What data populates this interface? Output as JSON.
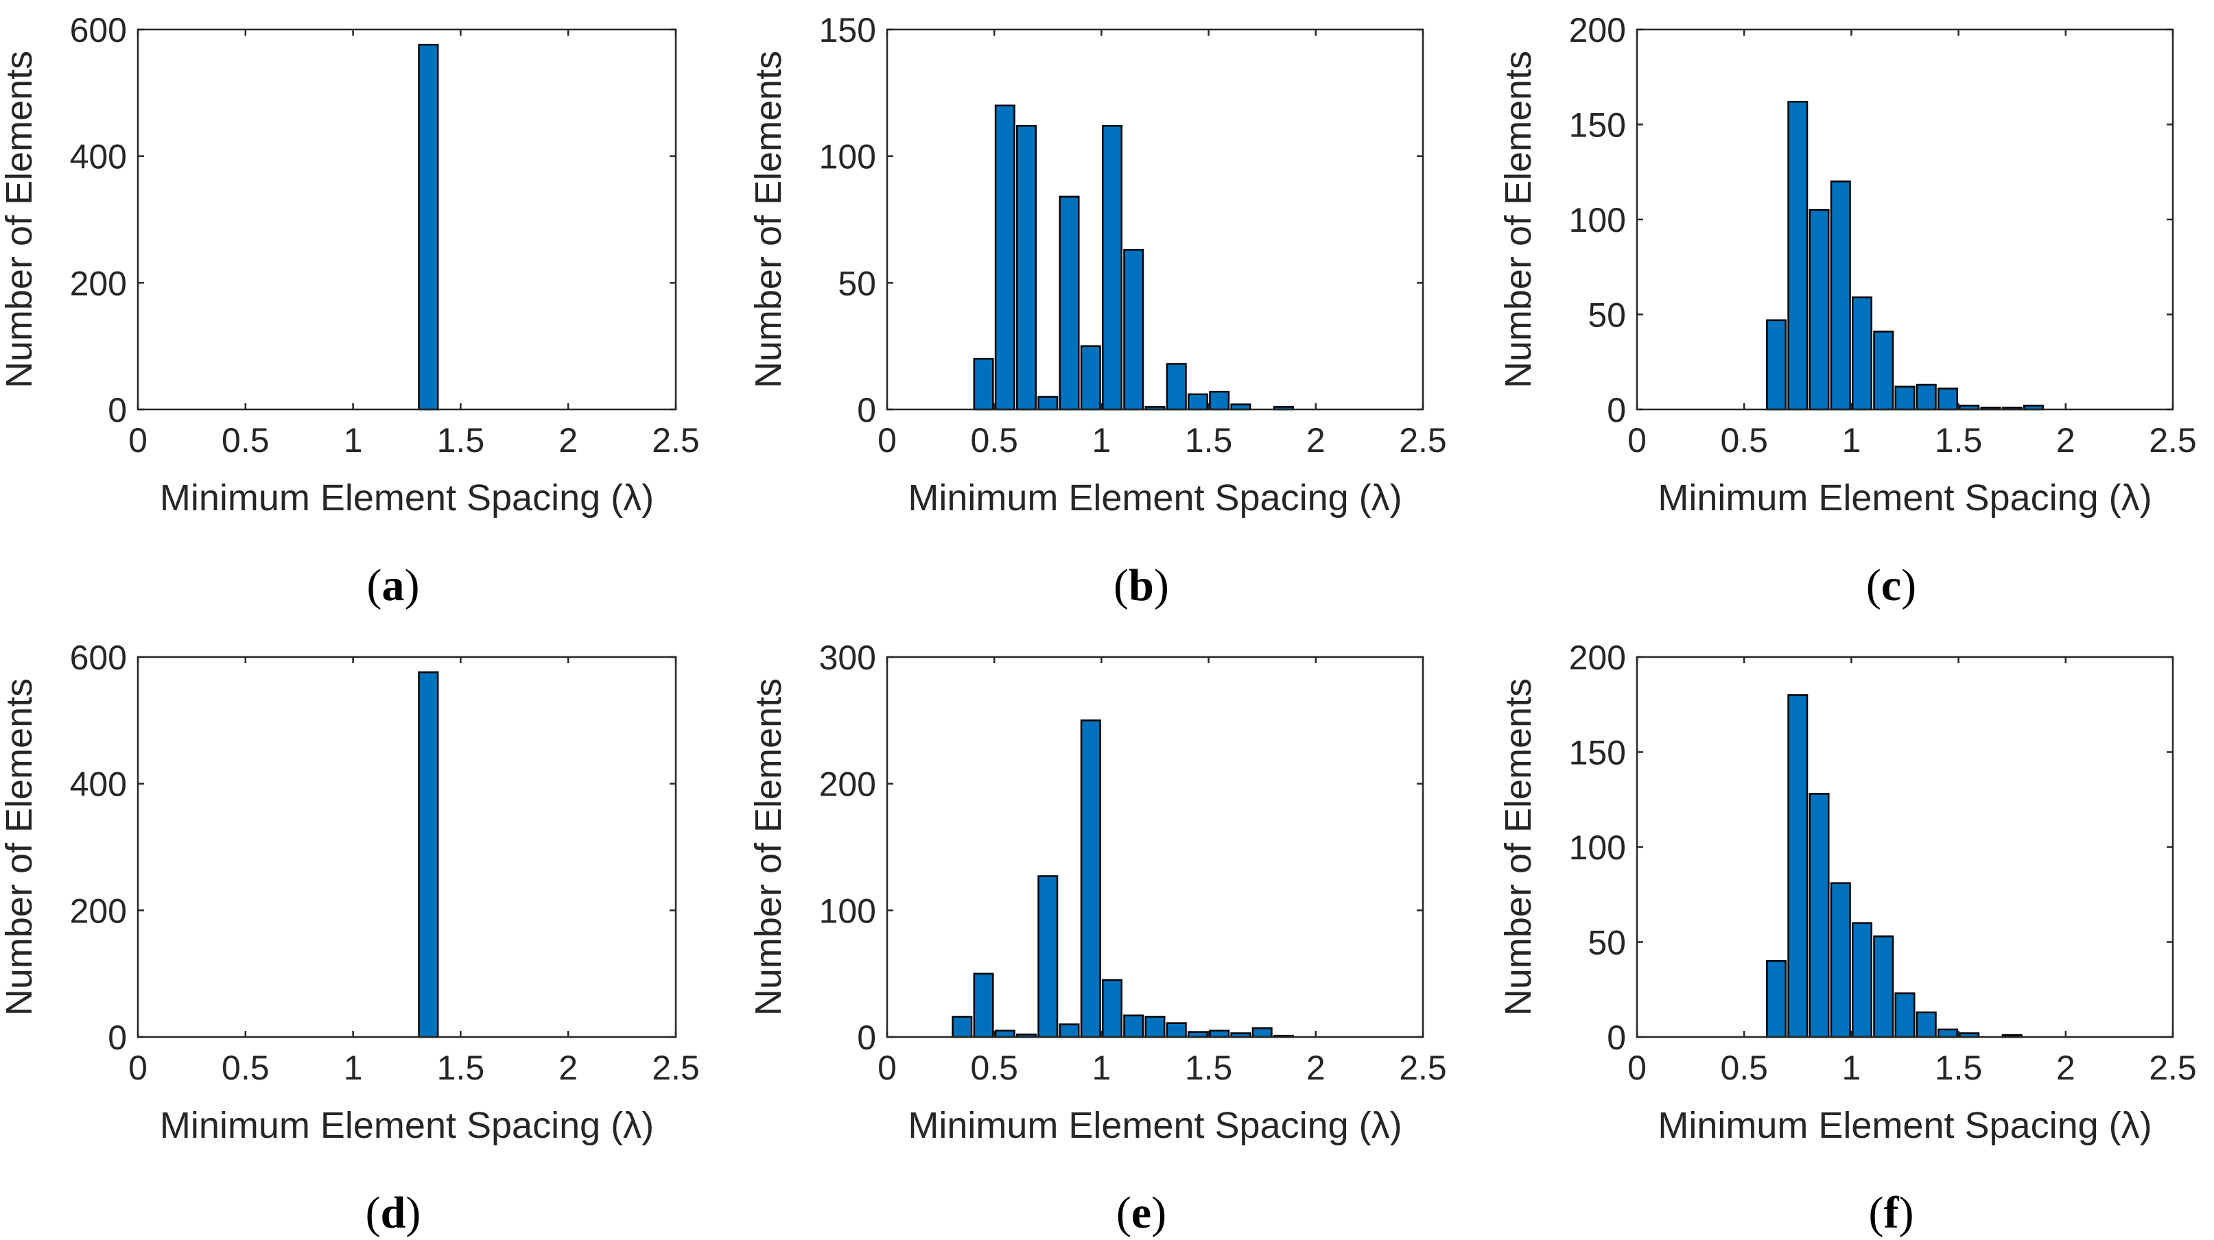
{
  "chart_data": [
    {
      "id": "a",
      "type": "bar",
      "caption": "a",
      "xlabel": "Minimum Element Spacing (λ)",
      "ylabel": "Number of Elements",
      "xlim": [
        0,
        2.5
      ],
      "ylim": [
        0,
        600
      ],
      "xticks": [
        "0",
        "0.5",
        "1",
        "1.5",
        "2",
        "2.5"
      ],
      "xtick_values": [
        0,
        0.5,
        1,
        1.5,
        2,
        2.5
      ],
      "yticks": [
        "0",
        "200",
        "400",
        "600"
      ],
      "ytick_values": [
        0,
        200,
        400,
        600
      ],
      "bin_width": 0.1,
      "bins": [
        {
          "x": 1.35,
          "count": 576
        }
      ]
    },
    {
      "id": "b",
      "type": "bar",
      "caption": "b",
      "xlabel": "Minimum Element Spacing (λ)",
      "ylabel": "Number of Elements",
      "xlim": [
        0,
        2.5
      ],
      "ylim": [
        0,
        150
      ],
      "xticks": [
        "0",
        "0.5",
        "1",
        "1.5",
        "2",
        "2.5"
      ],
      "xtick_values": [
        0,
        0.5,
        1,
        1.5,
        2,
        2.5
      ],
      "yticks": [
        "0",
        "50",
        "100",
        "150"
      ],
      "ytick_values": [
        0,
        50,
        100,
        150
      ],
      "bin_width": 0.1,
      "bins": [
        {
          "x": 0.45,
          "count": 20
        },
        {
          "x": 0.55,
          "count": 120
        },
        {
          "x": 0.65,
          "count": 112
        },
        {
          "x": 0.75,
          "count": 5
        },
        {
          "x": 0.85,
          "count": 84
        },
        {
          "x": 0.95,
          "count": 25
        },
        {
          "x": 1.05,
          "count": 112
        },
        {
          "x": 1.15,
          "count": 63
        },
        {
          "x": 1.25,
          "count": 1
        },
        {
          "x": 1.35,
          "count": 18
        },
        {
          "x": 1.45,
          "count": 6
        },
        {
          "x": 1.55,
          "count": 7
        },
        {
          "x": 1.65,
          "count": 2
        },
        {
          "x": 1.85,
          "count": 1
        }
      ]
    },
    {
      "id": "c",
      "type": "bar",
      "caption": "c",
      "xlabel": "Minimum Element Spacing (λ)",
      "ylabel": "Number of Elements",
      "xlim": [
        0,
        2.5
      ],
      "ylim": [
        0,
        200
      ],
      "xticks": [
        "0",
        "0.5",
        "1",
        "1.5",
        "2",
        "2.5"
      ],
      "xtick_values": [
        0,
        0.5,
        1,
        1.5,
        2,
        2.5
      ],
      "yticks": [
        "0",
        "50",
        "100",
        "150",
        "200"
      ],
      "ytick_values": [
        0,
        50,
        100,
        150,
        200
      ],
      "bin_width": 0.1,
      "bins": [
        {
          "x": 0.65,
          "count": 47
        },
        {
          "x": 0.75,
          "count": 162
        },
        {
          "x": 0.85,
          "count": 105
        },
        {
          "x": 0.95,
          "count": 120
        },
        {
          "x": 1.05,
          "count": 59
        },
        {
          "x": 1.15,
          "count": 41
        },
        {
          "x": 1.25,
          "count": 12
        },
        {
          "x": 1.35,
          "count": 13
        },
        {
          "x": 1.45,
          "count": 11
        },
        {
          "x": 1.55,
          "count": 2
        },
        {
          "x": 1.65,
          "count": 1
        },
        {
          "x": 1.75,
          "count": 1
        },
        {
          "x": 1.85,
          "count": 2
        }
      ]
    },
    {
      "id": "d",
      "type": "bar",
      "caption": "d",
      "xlabel": "Minimum Element Spacing (λ)",
      "ylabel": "Number of Elements",
      "xlim": [
        0,
        2.5
      ],
      "ylim": [
        0,
        600
      ],
      "xticks": [
        "0",
        "0.5",
        "1",
        "1.5",
        "2",
        "2.5"
      ],
      "xtick_values": [
        0,
        0.5,
        1,
        1.5,
        2,
        2.5
      ],
      "yticks": [
        "0",
        "200",
        "400",
        "600"
      ],
      "ytick_values": [
        0,
        200,
        400,
        600
      ],
      "bin_width": 0.1,
      "bins": [
        {
          "x": 1.35,
          "count": 576
        }
      ]
    },
    {
      "id": "e",
      "type": "bar",
      "caption": "e",
      "xlabel": "Minimum Element Spacing (λ)",
      "ylabel": "Number of Elements",
      "xlim": [
        0,
        2.5
      ],
      "ylim": [
        0,
        300
      ],
      "xticks": [
        "0",
        "0.5",
        "1",
        "1.5",
        "2",
        "2.5"
      ],
      "xtick_values": [
        0,
        0.5,
        1,
        1.5,
        2,
        2.5
      ],
      "yticks": [
        "0",
        "100",
        "200",
        "300"
      ],
      "ytick_values": [
        0,
        100,
        200,
        300
      ],
      "bin_width": 0.1,
      "bins": [
        {
          "x": 0.35,
          "count": 16
        },
        {
          "x": 0.45,
          "count": 50
        },
        {
          "x": 0.55,
          "count": 5
        },
        {
          "x": 0.65,
          "count": 2
        },
        {
          "x": 0.75,
          "count": 127
        },
        {
          "x": 0.85,
          "count": 10
        },
        {
          "x": 0.95,
          "count": 250
        },
        {
          "x": 1.05,
          "count": 45
        },
        {
          "x": 1.15,
          "count": 17
        },
        {
          "x": 1.25,
          "count": 16
        },
        {
          "x": 1.35,
          "count": 11
        },
        {
          "x": 1.45,
          "count": 4
        },
        {
          "x": 1.55,
          "count": 5
        },
        {
          "x": 1.65,
          "count": 3
        },
        {
          "x": 1.75,
          "count": 7
        },
        {
          "x": 1.85,
          "count": 1
        }
      ]
    },
    {
      "id": "f",
      "type": "bar",
      "caption": "f",
      "xlabel": "Minimum Element Spacing (λ)",
      "ylabel": "Number of Elements",
      "xlim": [
        0,
        2.5
      ],
      "ylim": [
        0,
        200
      ],
      "xticks": [
        "0",
        "0.5",
        "1",
        "1.5",
        "2",
        "2.5"
      ],
      "xtick_values": [
        0,
        0.5,
        1,
        1.5,
        2,
        2.5
      ],
      "yticks": [
        "0",
        "50",
        "100",
        "150",
        "200"
      ],
      "ytick_values": [
        0,
        50,
        100,
        150,
        200
      ],
      "bin_width": 0.1,
      "bins": [
        {
          "x": 0.65,
          "count": 40
        },
        {
          "x": 0.75,
          "count": 180
        },
        {
          "x": 0.85,
          "count": 128
        },
        {
          "x": 0.95,
          "count": 81
        },
        {
          "x": 1.05,
          "count": 60
        },
        {
          "x": 1.15,
          "count": 53
        },
        {
          "x": 1.25,
          "count": 23
        },
        {
          "x": 1.35,
          "count": 13
        },
        {
          "x": 1.45,
          "count": 4
        },
        {
          "x": 1.55,
          "count": 2
        },
        {
          "x": 1.75,
          "count": 1
        }
      ]
    }
  ],
  "style": {
    "bar_color": "#0072BD",
    "bar_edge_color": "#000000",
    "axis_color": "#262626"
  }
}
